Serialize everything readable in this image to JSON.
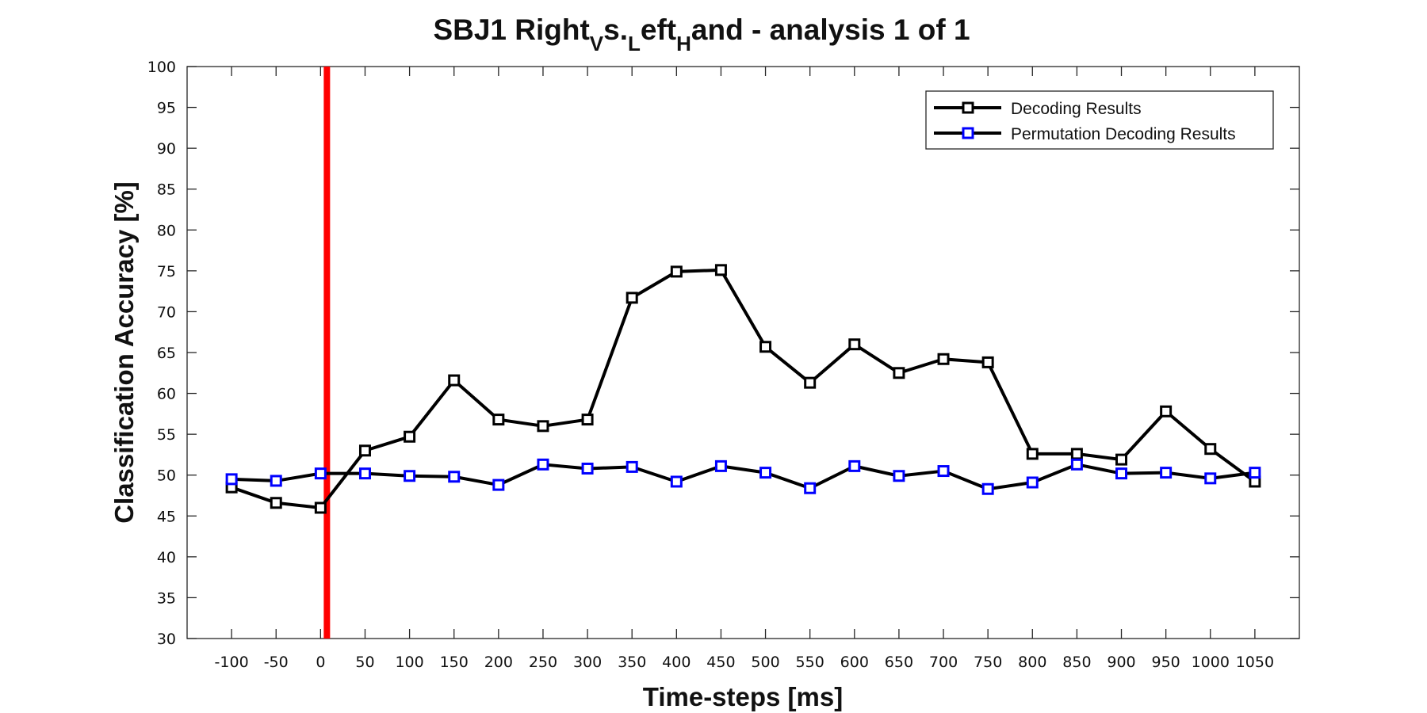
{
  "chart_data": {
    "type": "line",
    "title": {
      "main": "SBJ1 Right",
      "sub1": "V",
      "mid1": "s.",
      "sub2": "L",
      "mid2": "eft",
      "sub3": "H",
      "tail": "and - analysis 1 of 1"
    },
    "xlabel": "Time-steps [ms]",
    "ylabel": "Classification Accuracy [%]",
    "x": [
      -100,
      -50,
      0,
      50,
      100,
      150,
      200,
      250,
      300,
      350,
      400,
      450,
      500,
      550,
      600,
      650,
      700,
      750,
      800,
      850,
      900,
      950,
      1000,
      1050
    ],
    "x_tick_labels": [
      "-100",
      "-50",
      "0",
      "50",
      "100",
      "150",
      "200",
      "250",
      "300",
      "350",
      "400",
      "450",
      "500",
      "550",
      "600",
      "650",
      "700",
      "750",
      "800",
      "850",
      "900",
      "950",
      "1000",
      "1050"
    ],
    "xlim": [
      -150,
      1100
    ],
    "ylim": [
      30,
      100
    ],
    "y_ticks": [
      30,
      35,
      40,
      45,
      50,
      55,
      60,
      65,
      70,
      75,
      80,
      85,
      90,
      95,
      100
    ],
    "grid": false,
    "legend_position": "top-right",
    "vertical_marker": {
      "x": 0,
      "color": "#ff0000"
    },
    "series": [
      {
        "name": "Decoding Results",
        "line_color": "#000000",
        "marker_color": "#000000",
        "values": [
          48.5,
          46.6,
          46.0,
          53.0,
          54.7,
          61.6,
          56.8,
          56.0,
          56.8,
          71.7,
          74.9,
          75.1,
          65.7,
          61.3,
          66.0,
          62.5,
          64.2,
          63.8,
          52.6,
          52.6,
          51.9,
          57.8,
          53.2,
          49.2
        ]
      },
      {
        "name": "Permutation Decoding Results",
        "line_color": "#000000",
        "marker_color": "#0000ff",
        "values": [
          49.5,
          49.3,
          50.2,
          50.2,
          49.9,
          49.8,
          48.8,
          51.3,
          50.8,
          51.0,
          49.2,
          51.1,
          50.3,
          48.4,
          51.1,
          49.9,
          50.5,
          48.3,
          49.1,
          51.3,
          50.2,
          50.3,
          49.6,
          50.3
        ]
      }
    ]
  }
}
